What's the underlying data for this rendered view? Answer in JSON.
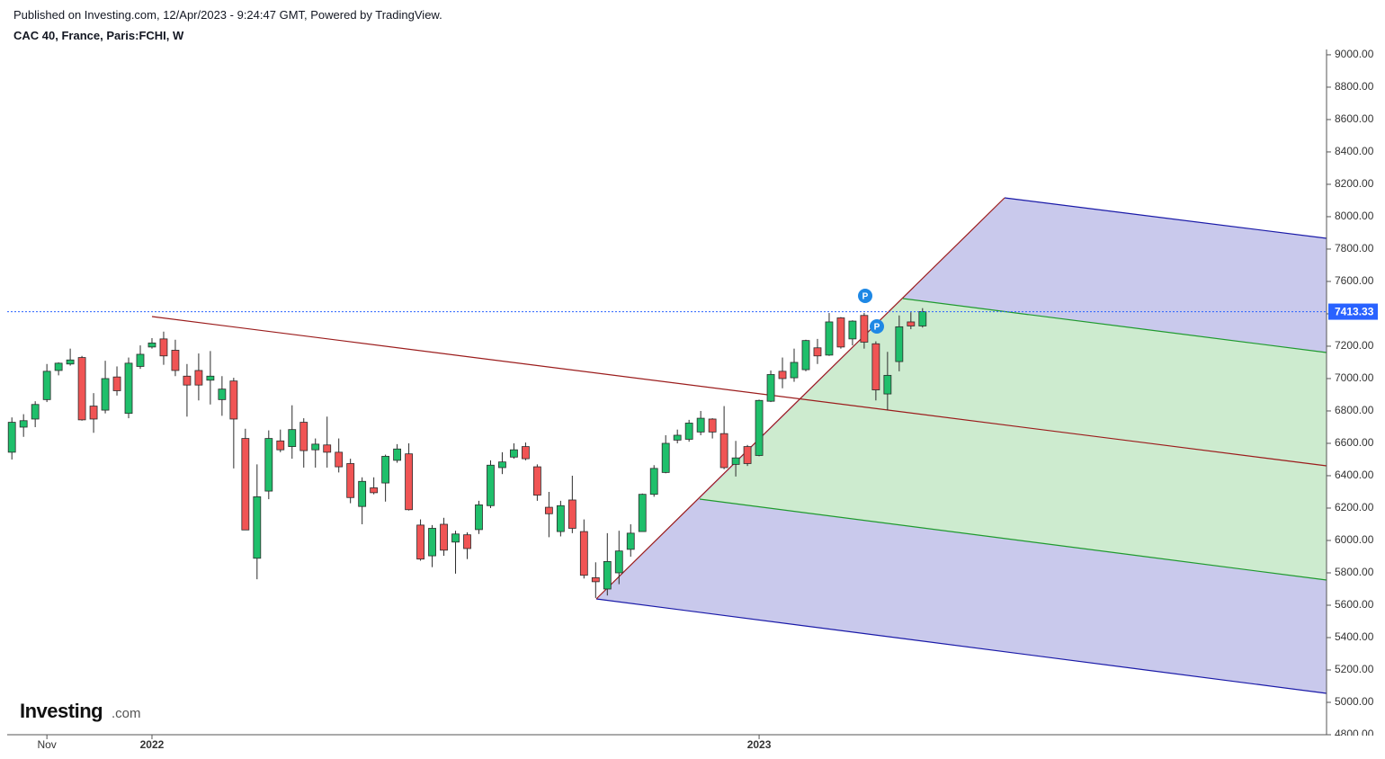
{
  "header": {
    "published": "Published on Investing.com, 12/Apr/2023 - 9:24:47 GMT, Powered by TradingView.",
    "symbol": "CAC 40, France, Paris:FCHI, W"
  },
  "logo": {
    "brand": "Investing",
    "suffix": ".com"
  },
  "chart_data": {
    "type": "candlestick",
    "up_color": "#1fbf6b",
    "down_color": "#f05454",
    "border_color": "#2b2b2b",
    "last_line_color": "#2962ff",
    "open": [
      6545,
      6700,
      6750,
      6870,
      7050,
      7090,
      7130,
      6830,
      6805,
      7010,
      6785,
      7075,
      7195,
      7245,
      7175,
      7015,
      7050,
      6990,
      6870,
      6985,
      6630,
      5890,
      6305,
      6615,
      6580,
      6730,
      6560,
      6590,
      6545,
      6475,
      6210,
      6325,
      6355,
      6495,
      6535,
      6095,
      5905,
      6100,
      5990,
      6035,
      6067,
      6215,
      6450,
      6515,
      6580,
      6455,
      6205,
      6055,
      6250,
      6055,
      5770,
      5700,
      5800,
      5945,
      6055,
      6285,
      6420,
      6620,
      6625,
      6670,
      6750,
      6660,
      6470,
      6580,
      6525,
      6860,
      7045,
      7005,
      7055,
      7190,
      7145,
      7375,
      7245,
      7390,
      7215,
      6905,
      7105,
      7350,
      7325
    ],
    "high": [
      6760,
      6780,
      6860,
      7090,
      7100,
      7185,
      7140,
      6910,
      7110,
      7075,
      7130,
      7205,
      7250,
      7290,
      7240,
      7090,
      7155,
      7170,
      7015,
      7005,
      6690,
      6470,
      6680,
      6685,
      6835,
      6755,
      6630,
      6765,
      6630,
      6505,
      6390,
      6390,
      6530,
      6595,
      6600,
      6130,
      6095,
      6140,
      6060,
      6050,
      6245,
      6495,
      6545,
      6600,
      6605,
      6470,
      6300,
      6245,
      6400,
      6130,
      5865,
      6045,
      6060,
      6100,
      6290,
      6465,
      6650,
      6685,
      6745,
      6800,
      6755,
      6830,
      6615,
      6590,
      6870,
      7050,
      7130,
      7185,
      7240,
      7245,
      7405,
      7380,
      7360,
      7405,
      7230,
      7165,
      7390,
      7410,
      7435
    ],
    "low": [
      6500,
      6640,
      6700,
      6855,
      7020,
      7080,
      6740,
      6665,
      6785,
      6895,
      6755,
      7060,
      7185,
      7085,
      7015,
      6765,
      6865,
      6840,
      6770,
      6445,
      6065,
      5760,
      6255,
      6545,
      6505,
      6450,
      6450,
      6450,
      6420,
      6230,
      6100,
      6285,
      6240,
      6480,
      6185,
      5875,
      5835,
      5905,
      5795,
      5885,
      6040,
      6200,
      6410,
      6505,
      6495,
      6245,
      6020,
      6025,
      6045,
      5765,
      5645,
      5660,
      5730,
      5900,
      6055,
      6270,
      6415,
      6600,
      6610,
      6650,
      6630,
      6440,
      6395,
      6460,
      6520,
      6855,
      6940,
      6980,
      7045,
      7090,
      7140,
      7185,
      7205,
      7185,
      6865,
      6805,
      7045,
      7305,
      7315
    ],
    "close": [
      6730,
      6740,
      6840,
      7045,
      7095,
      7115,
      6745,
      6750,
      7000,
      6925,
      7095,
      7150,
      7220,
      7140,
      7050,
      6960,
      6960,
      7015,
      6935,
      6750,
      6065,
      6270,
      6630,
      6560,
      6685,
      6555,
      6595,
      6545,
      6455,
      6265,
      6365,
      6295,
      6520,
      6565,
      6190,
      5885,
      6075,
      5940,
      6040,
      5950,
      6220,
      6465,
      6485,
      6560,
      6505,
      6280,
      6165,
      6215,
      6075,
      5785,
      5745,
      5870,
      5935,
      6045,
      6285,
      6445,
      6600,
      6650,
      6725,
      6755,
      6670,
      6450,
      6510,
      6475,
      6865,
      7025,
      7000,
      7100,
      7235,
      7140,
      7350,
      7195,
      7355,
      7225,
      6930,
      7020,
      7320,
      7325,
      7413.33
    ],
    "last_label": "7413.33",
    "pivot_labels": [
      "P",
      "P"
    ],
    "xlim": [
      -0.4,
      112.6
    ],
    "xticks": [
      {
        "value": 3,
        "label": "Nov"
      },
      {
        "value": 12,
        "label": "2022"
      },
      {
        "value": 64,
        "label": "2023"
      }
    ],
    "ylim": [
      4800,
      9033
    ],
    "yticks": [
      {
        "value": 4800,
        "label": "4800.00"
      },
      {
        "value": 5000,
        "label": "5000.00"
      },
      {
        "value": 5200,
        "label": "5200.00"
      },
      {
        "value": 5400,
        "label": "5400.00"
      },
      {
        "value": 5600,
        "label": "5600.00"
      },
      {
        "value": 5800,
        "label": "5800.00"
      },
      {
        "value": 6000,
        "label": "6000.00"
      },
      {
        "value": 6200,
        "label": "6200.00"
      },
      {
        "value": 6400,
        "label": "6400.00"
      },
      {
        "value": 6600,
        "label": "6600.00"
      },
      {
        "value": 6800,
        "label": "6800.00"
      },
      {
        "value": 7000,
        "label": "7000.00"
      },
      {
        "value": 7200,
        "label": "7200.00"
      },
      {
        "value": 7400,
        "label": "7400.00"
      },
      {
        "value": 7600,
        "label": "7600.00"
      },
      {
        "value": 7800,
        "label": "7800.00"
      },
      {
        "value": 8000,
        "label": "8000.00"
      },
      {
        "value": 8200,
        "label": "8200.00"
      },
      {
        "value": 8400,
        "label": "8400.00"
      },
      {
        "value": 8600,
        "label": "8600.00"
      },
      {
        "value": 8800,
        "label": "8800.00"
      },
      {
        "value": 9000,
        "label": "9000.00"
      }
    ]
  }
}
